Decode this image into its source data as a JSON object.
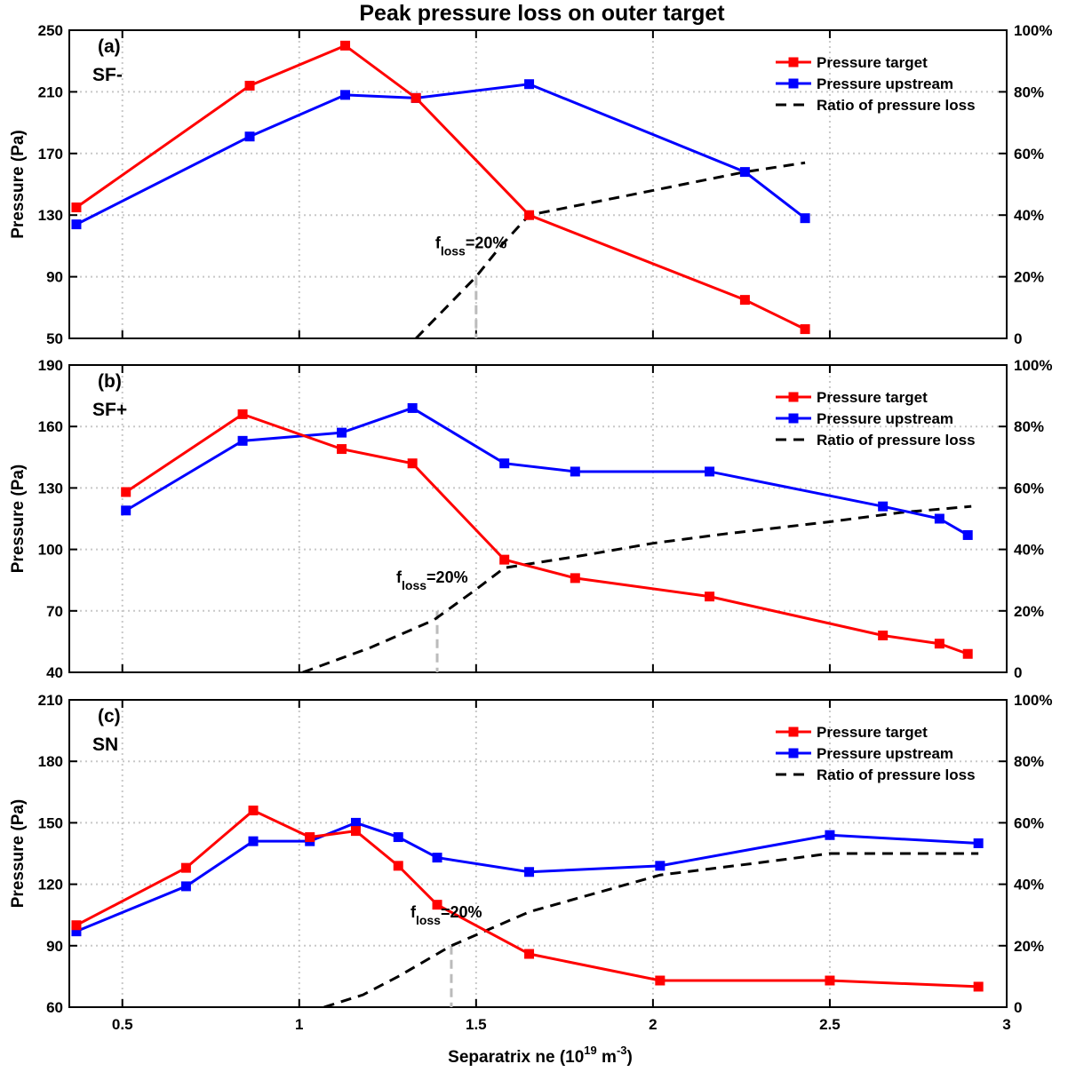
{
  "chart_data": {
    "type": "line",
    "title": "Peak pressure loss on outer target",
    "xlabel": {
      "main": "Separatrix ne (10",
      "sup1": "19",
      "mid": " m",
      "sup2": "-3",
      "end": ")"
    },
    "xlim": [
      0.35,
      3
    ],
    "xticks": [
      0.5,
      1,
      1.5,
      2,
      2.5,
      3
    ],
    "xtick_labels": [
      "0.5",
      "1",
      "1.5",
      "2",
      "2.5",
      "3"
    ],
    "grid": true,
    "legend_position": "top-right",
    "legend": [
      "Pressure target",
      "Pressure upstream",
      "Ratio of pressure loss"
    ],
    "colors": {
      "target": "#ff0000",
      "upstream": "#0000ff",
      "ratio": "#000000",
      "marker_line": "#bbbbbb",
      "grid": "#c8c8c8"
    },
    "panels": [
      {
        "label": "(a)",
        "config": "SF-",
        "ylabel": "Pressure (Pa)",
        "ylim": [
          50,
          250
        ],
        "yticks": [
          50,
          90,
          130,
          170,
          210,
          250
        ],
        "y2lim": [
          0,
          100
        ],
        "y2ticks": [
          0,
          20,
          40,
          60,
          80,
          100
        ],
        "y2tick_labels": [
          "0",
          "20%",
          "40%",
          "60%",
          "80%",
          "100%"
        ],
        "series": [
          {
            "name": "Pressure target",
            "x": [
              0.37,
              0.86,
              1.13,
              1.33,
              1.65,
              2.26,
              2.43
            ],
            "y": [
              135,
              214,
              240,
              206,
              130,
              75,
              56
            ]
          },
          {
            "name": "Pressure upstream",
            "x": [
              0.37,
              0.86,
              1.13,
              1.33,
              1.65,
              2.26,
              2.43
            ],
            "y": [
              124,
              181,
              208,
              206,
              215,
              158,
              128
            ]
          },
          {
            "name": "Ratio of pressure loss",
            "x": [
              1.33,
              1.5,
              1.57,
              1.65,
              2.0,
              2.26,
              2.43
            ],
            "y": [
              0,
              20,
              30,
              40,
              48,
              54,
              57
            ]
          }
        ],
        "floss_x": 1.5,
        "annotation": {
          "base": "f",
          "sub": "loss",
          "rest": "=20%"
        }
      },
      {
        "label": "(b)",
        "config": "SF+",
        "ylabel": "Pressure (Pa)",
        "ylim": [
          40,
          190
        ],
        "yticks": [
          40,
          70,
          100,
          130,
          160,
          190
        ],
        "y2lim": [
          0,
          100
        ],
        "y2ticks": [
          0,
          20,
          40,
          60,
          80,
          100
        ],
        "y2tick_labels": [
          "0",
          "20%",
          "40%",
          "60%",
          "80%",
          "100%"
        ],
        "series": [
          {
            "name": "Pressure target",
            "x": [
              0.51,
              0.84,
              1.12,
              1.32,
              1.58,
              1.78,
              2.16,
              2.65,
              2.81,
              2.89
            ],
            "y": [
              128,
              166,
              149,
              142,
              95,
              86,
              77,
              58,
              54,
              49
            ]
          },
          {
            "name": "Pressure upstream",
            "x": [
              0.51,
              0.84,
              1.12,
              1.32,
              1.58,
              1.78,
              2.16,
              2.65,
              2.81,
              2.89
            ],
            "y": [
              119,
              153,
              157,
              169,
              142,
              138,
              138,
              121,
              115,
              107
            ]
          },
          {
            "name": "Ratio of pressure loss",
            "x": [
              1.01,
              1.2,
              1.38,
              1.5,
              1.58,
              1.8,
              2.0,
              2.2,
              2.5,
              2.7,
              2.9
            ],
            "y": [
              0,
              8,
              17,
              27,
              34,
              38,
              42,
              45,
              49,
              52,
              54
            ]
          }
        ],
        "floss_x": 1.39,
        "annotation": {
          "base": "f",
          "sub": "loss",
          "rest": "=20%"
        }
      },
      {
        "label": "(c)",
        "config": "SN",
        "ylabel": "Pressure (Pa)",
        "ylim": [
          60,
          210
        ],
        "yticks": [
          60,
          90,
          120,
          150,
          180,
          210
        ],
        "y2lim": [
          0,
          100
        ],
        "y2ticks": [
          0,
          20,
          40,
          60,
          80,
          100
        ],
        "y2tick_labels": [
          "0",
          "20%",
          "40%",
          "60%",
          "80%",
          "100%"
        ],
        "series": [
          {
            "name": "Pressure target",
            "x": [
              0.37,
              0.68,
              0.87,
              1.03,
              1.16,
              1.28,
              1.39,
              1.65,
              2.02,
              2.5,
              2.92
            ],
            "y": [
              100,
              128,
              156,
              143,
              146,
              129,
              110,
              86,
              73,
              73,
              70
            ]
          },
          {
            "name": "Pressure upstream",
            "x": [
              0.37,
              0.68,
              0.87,
              1.03,
              1.16,
              1.28,
              1.39,
              1.65,
              2.02,
              2.5,
              2.92
            ],
            "y": [
              97,
              119,
              141,
              141,
              150,
              143,
              133,
              126,
              129,
              144,
              140
            ]
          },
          {
            "name": "Ratio of pressure loss",
            "x": [
              1.07,
              1.18,
              1.28,
              1.43,
              1.65,
              2.02,
              2.3,
              2.5,
              2.92
            ],
            "y": [
              0,
              4,
              10,
              20,
              31,
              43,
              47,
              50,
              50
            ]
          }
        ],
        "floss_x": 1.43,
        "annotation": {
          "base": "f",
          "sub": "loss",
          "rest": "=20%"
        }
      }
    ]
  }
}
